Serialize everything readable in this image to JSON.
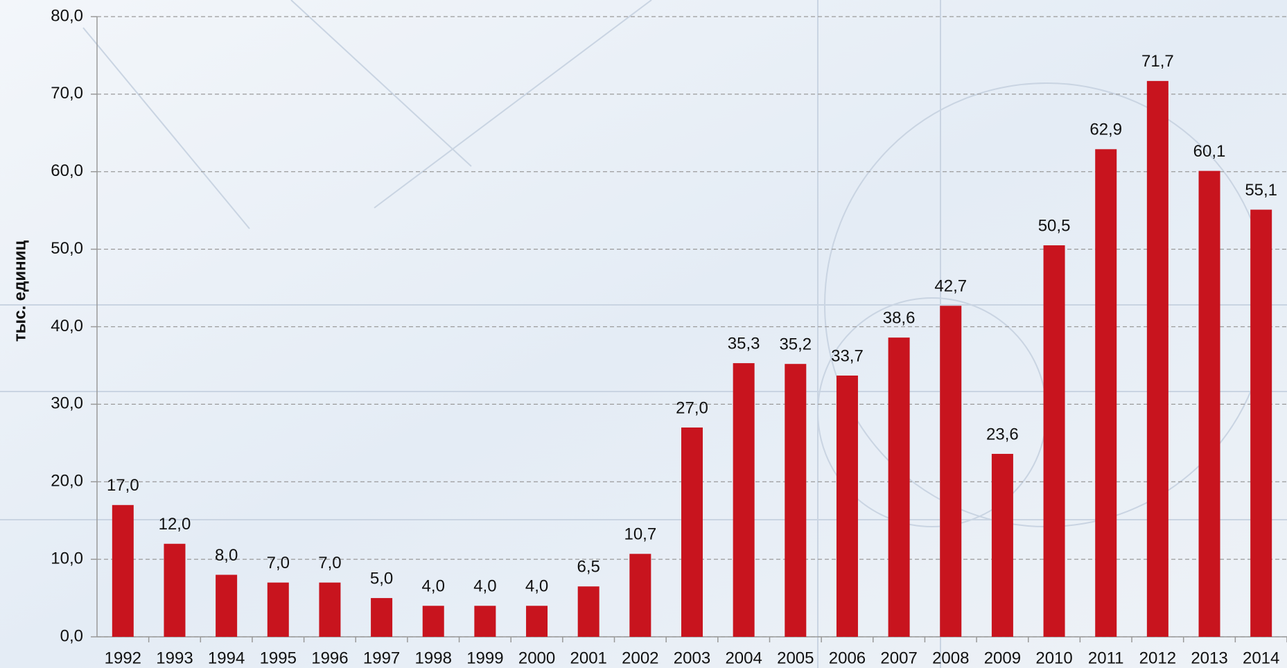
{
  "chart_data": {
    "type": "bar",
    "y_label": "тыс. единиц",
    "categories": [
      "1992",
      "1993",
      "1994",
      "1995",
      "1996",
      "1997",
      "1998",
      "1999",
      "2000",
      "2001",
      "2002",
      "2003",
      "2004",
      "2005",
      "2006",
      "2007",
      "2008",
      "2009",
      "2010",
      "2011",
      "2012",
      "2013",
      "2014"
    ],
    "values": [
      17.0,
      12.0,
      8.0,
      7.0,
      7.0,
      5.0,
      4.0,
      4.0,
      4.0,
      6.5,
      10.7,
      27.0,
      35.3,
      35.2,
      33.7,
      38.6,
      42.7,
      23.6,
      50.5,
      62.9,
      71.7,
      60.1,
      55.1
    ],
    "value_labels": [
      "17,0",
      "12,0",
      "8,0",
      "7,0",
      "7,0",
      "5,0",
      "4,0",
      "4,0",
      "4,0",
      "6,5",
      "10,7",
      "27,0",
      "35,3",
      "35,2",
      "33,7",
      "38,6",
      "42,7",
      "23,6",
      "50,5",
      "62,9",
      "71,7",
      "60,1",
      "55,1"
    ],
    "color": "#c8141e",
    "ylim": [
      0,
      80
    ],
    "yticks": [
      {
        "value": 0,
        "label": "0,0"
      },
      {
        "value": 10,
        "label": "10,0"
      },
      {
        "value": 20,
        "label": "20,0"
      },
      {
        "value": 30,
        "label": "30,0"
      },
      {
        "value": 40,
        "label": "40,0"
      },
      {
        "value": 50,
        "label": "50,0"
      },
      {
        "value": 60,
        "label": "60,0"
      },
      {
        "value": 70,
        "label": "70,0"
      },
      {
        "value": 80,
        "label": "80,0"
      }
    ],
    "grid": true
  }
}
